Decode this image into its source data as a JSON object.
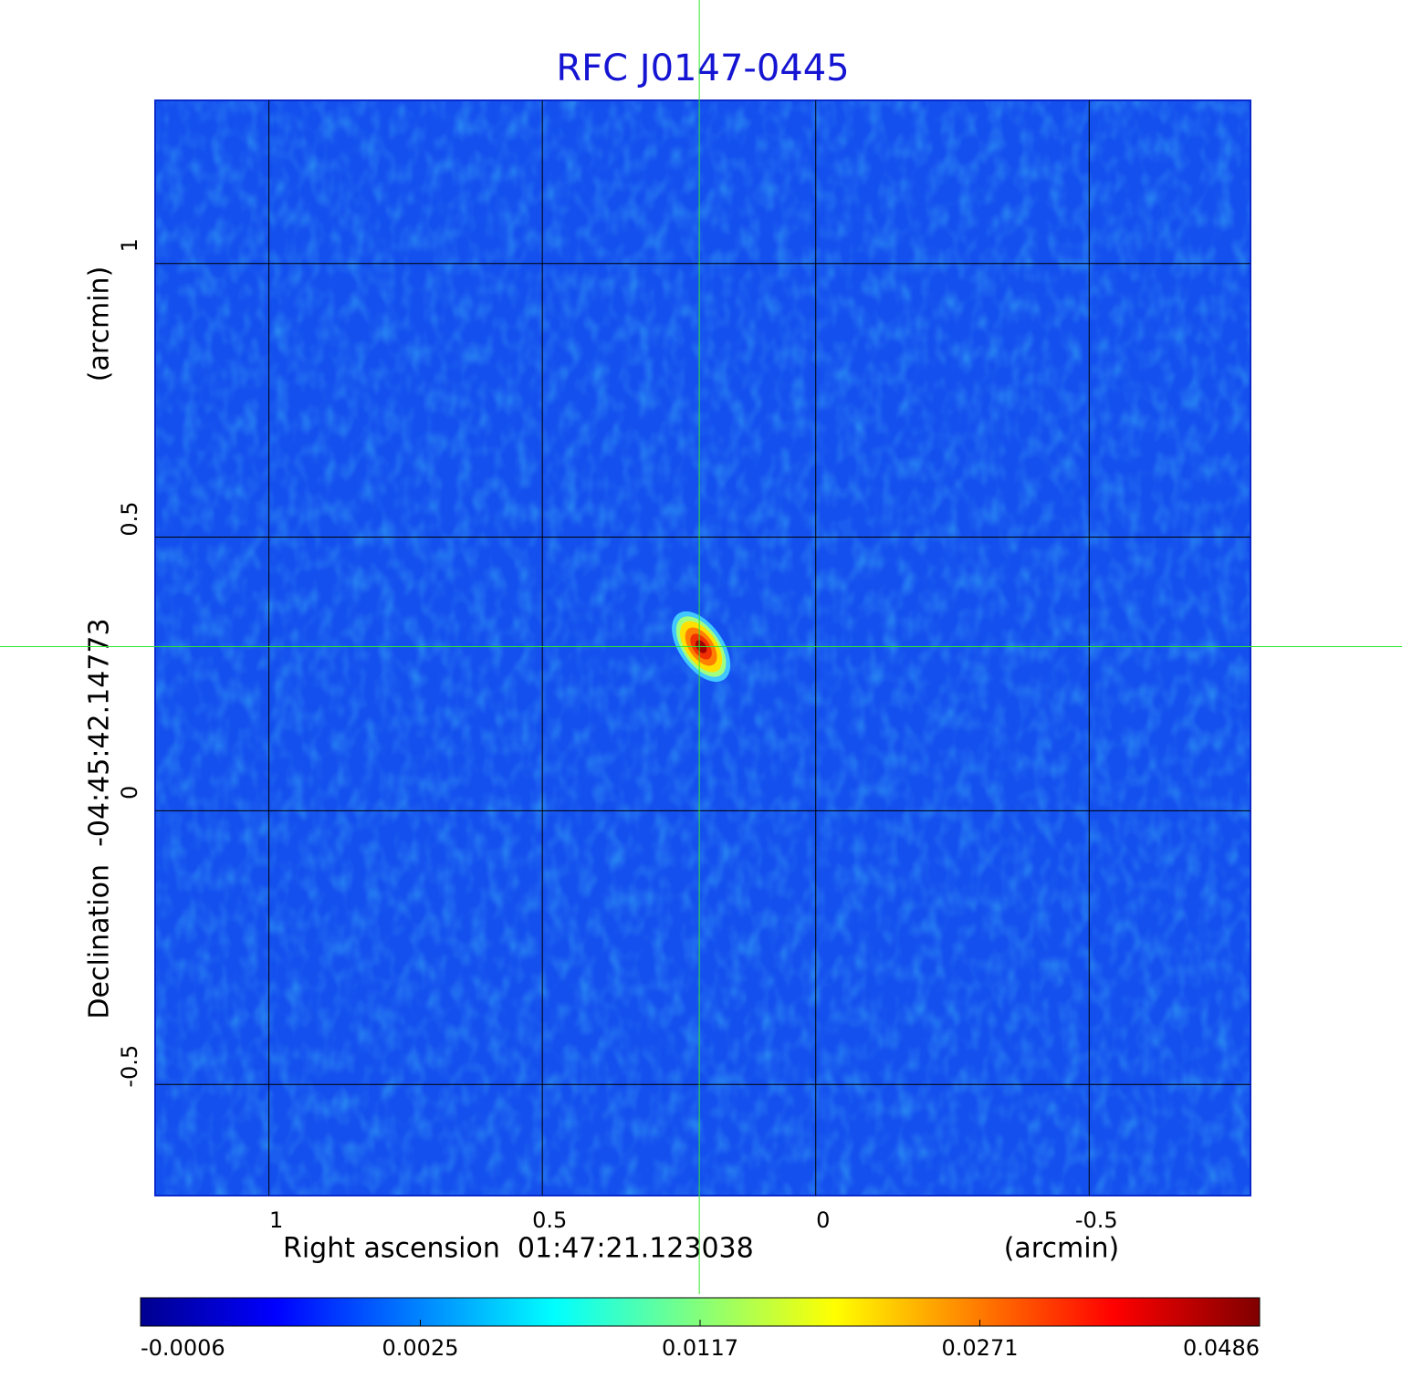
{
  "chart_data": {
    "type": "image",
    "title": "RFC J0147-0445",
    "x_label": "Right ascension  01:47:21.123038",
    "x_unit": "(arcmin)",
    "y_label": "Declination  -04:45:42.14773",
    "y_unit": "(arcmin)",
    "xlim": [
      1.208,
      -0.795
    ],
    "ylim": [
      -0.703,
      1.298
    ],
    "xticks": [
      1.0,
      0.5,
      0.0,
      -0.5
    ],
    "yticks": [
      1.0,
      0.5,
      0.0,
      -0.5
    ],
    "grid": true,
    "source": {
      "x": 0.213,
      "y": 0.3
    },
    "colorbar": {
      "ticks": [
        -0.0006,
        0.0025,
        0.0117,
        0.0271,
        0.0486
      ]
    }
  }
}
